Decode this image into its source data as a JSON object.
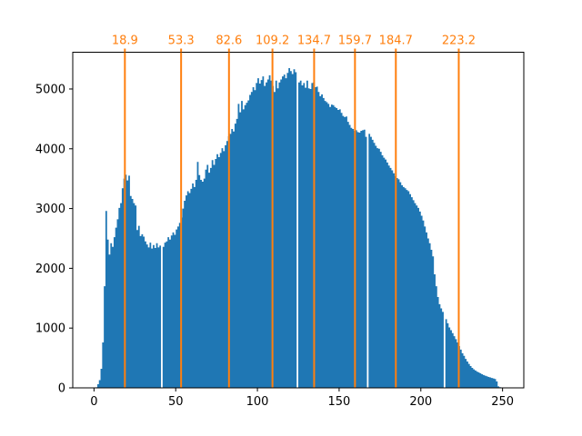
{
  "chart_data": {
    "type": "bar",
    "subtype": "histogram",
    "title": "",
    "xlabel": "",
    "ylabel": "",
    "legend": null,
    "grid": false,
    "bar_color": "#1f77b4",
    "marker_color": "#ff7f0e",
    "axis_color": "#000000",
    "xlim": [
      -13,
      263
    ],
    "ylim": [
      0,
      5615
    ],
    "x_ticks": [
      0,
      50,
      100,
      150,
      200,
      250
    ],
    "x_tick_labels": [
      "0",
      "50",
      "100",
      "150",
      "200",
      "250"
    ],
    "y_ticks": [
      0,
      1000,
      2000,
      3000,
      4000,
      5000
    ],
    "y_tick_labels": [
      "0",
      "1000",
      "2000",
      "3000",
      "4000",
      "5000"
    ],
    "top_axis": {
      "tick_values": [
        18.9,
        53.3,
        82.6,
        109.2,
        134.7,
        159.7,
        184.7,
        223.2
      ],
      "tick_labels": [
        "18.9",
        "53.3",
        "82.6",
        "109.2",
        "134.7",
        "159.7",
        "184.7",
        "223.2"
      ],
      "color": "#ff7f0e"
    },
    "vlines": [
      18.9,
      53.3,
      82.6,
      109.2,
      134.7,
      159.7,
      184.7,
      223.2
    ],
    "zero_bins": [
      41,
      124,
      167,
      214
    ],
    "bins_start": 0,
    "bin_width": 1,
    "counts": [
      0,
      10,
      60,
      130,
      320,
      760,
      1700,
      2960,
      2480,
      2230,
      2420,
      2360,
      2520,
      2680,
      2820,
      3010,
      3090,
      3340,
      3500,
      3565,
      3470,
      3550,
      3210,
      3160,
      3090,
      3050,
      2640,
      2710,
      2540,
      2570,
      2530,
      2450,
      2400,
      2350,
      2430,
      2330,
      2390,
      2340,
      2420,
      2350,
      2380,
      0,
      2360,
      2430,
      2450,
      2520,
      2480,
      2550,
      2600,
      2560,
      2650,
      2700,
      2760,
      2850,
      3000,
      3130,
      3220,
      3290,
      3260,
      3330,
      3420,
      3360,
      3480,
      3780,
      3560,
      3480,
      3450,
      3500,
      3650,
      3730,
      3600,
      3680,
      3810,
      3730,
      3830,
      3910,
      3860,
      3930,
      4010,
      3960,
      4060,
      4130,
      4210,
      4250,
      4330,
      4290,
      4420,
      4500,
      4750,
      4610,
      4800,
      4660,
      4730,
      4770,
      4810,
      4900,
      4950,
      5030,
      4980,
      5100,
      5180,
      5090,
      5150,
      5210,
      5050,
      5110,
      5160,
      5230,
      5140,
      5050,
      4950,
      5140,
      5010,
      5110,
      5160,
      5210,
      5240,
      5180,
      5270,
      5350,
      5300,
      5250,
      5330,
      5280,
      0,
      5110,
      5140,
      5060,
      5100,
      5020,
      5140,
      5010,
      5000,
      5100,
      5110,
      5030,
      5040,
      4950,
      4880,
      4910,
      4850,
      4800,
      4780,
      4750,
      4700,
      4740,
      4730,
      4700,
      4680,
      4650,
      4660,
      4600,
      4550,
      4530,
      4540,
      4450,
      4400,
      4350,
      4330,
      4300,
      4310,
      4280,
      4270,
      4300,
      4310,
      4320,
      4200,
      0,
      4250,
      4200,
      4150,
      4100,
      4050,
      4010,
      4000,
      3950,
      3890,
      3850,
      3820,
      3770,
      3720,
      3680,
      3640,
      3590,
      3540,
      3510,
      3490,
      3440,
      3390,
      3360,
      3340,
      3310,
      3290,
      3240,
      3190,
      3140,
      3090,
      3050,
      3010,
      2950,
      2880,
      2800,
      2700,
      2600,
      2500,
      2420,
      2310,
      2200,
      1900,
      1700,
      1520,
      1400,
      1330,
      1270,
      0,
      1150,
      1080,
      1010,
      965,
      915,
      865,
      815,
      760,
      700,
      640,
      580,
      535,
      485,
      440,
      400,
      365,
      335,
      310,
      290,
      272,
      258,
      243,
      228,
      214,
      203,
      193,
      183,
      174,
      166,
      158,
      148,
      108,
      25,
      12,
      8,
      5,
      3,
      2,
      1,
      0,
      0
    ]
  }
}
